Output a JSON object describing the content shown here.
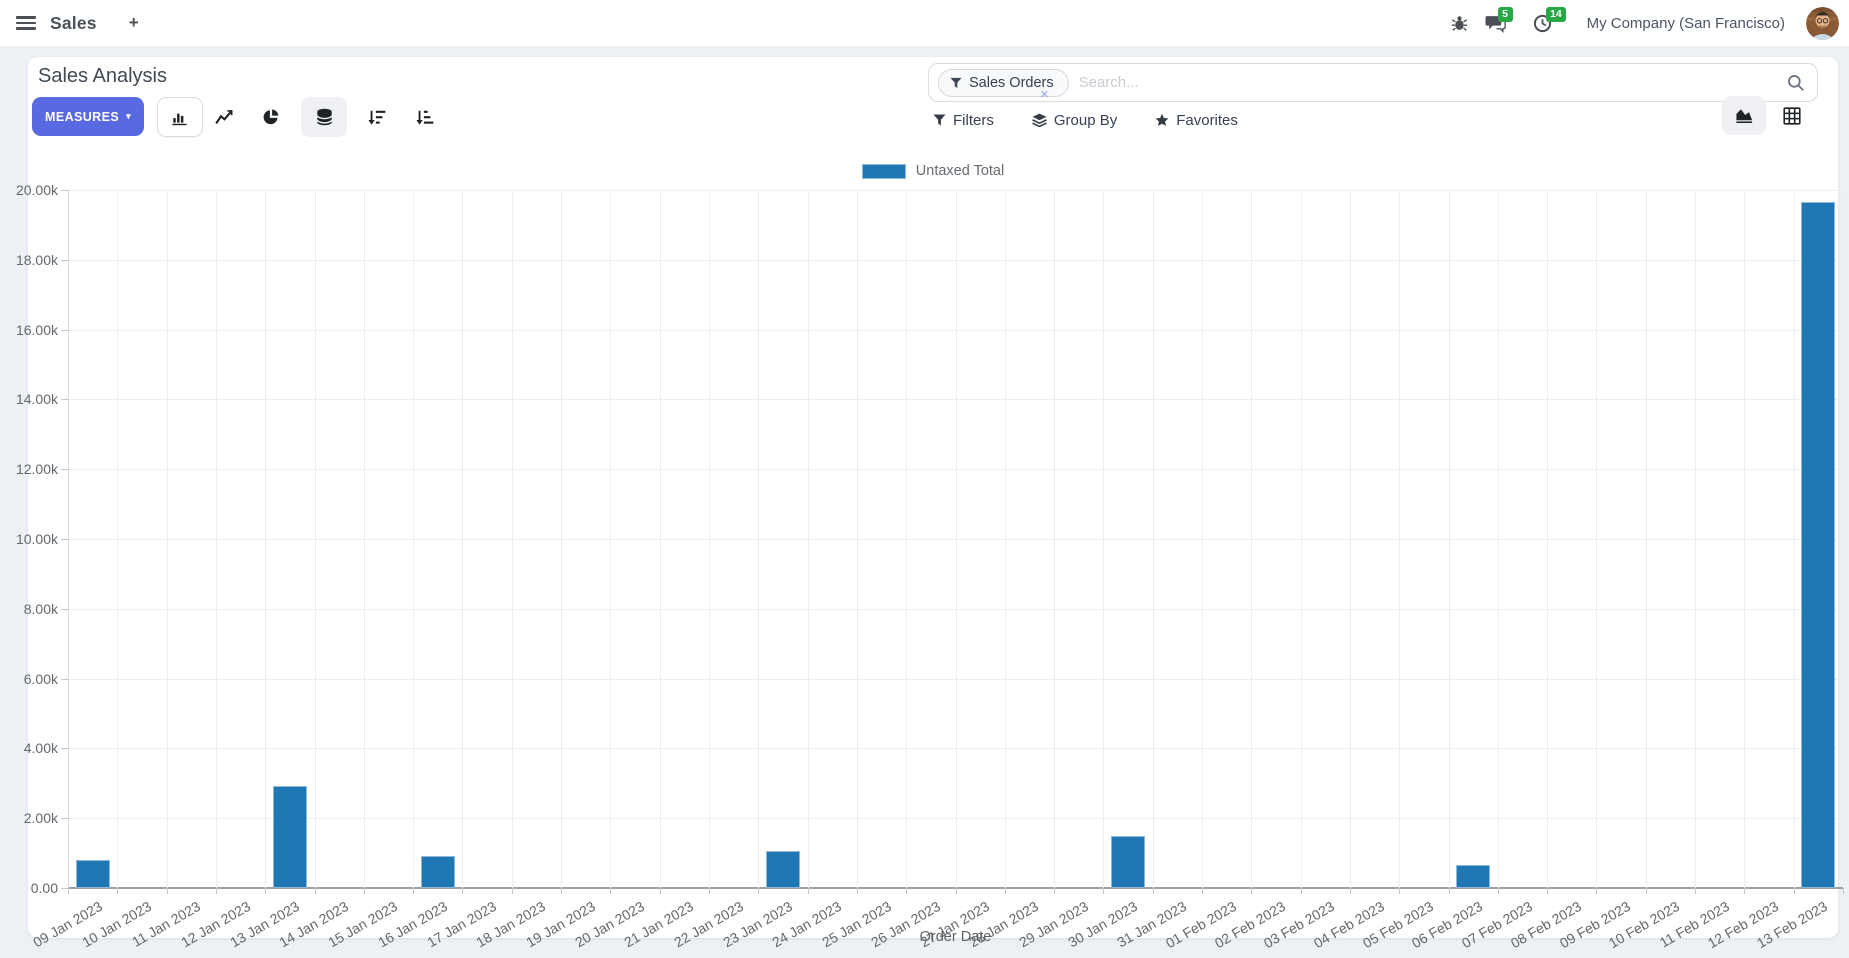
{
  "navbar": {
    "app_name": "Sales",
    "plus_label": "+",
    "messages_badge": "5",
    "activities_badge": "14",
    "company": "My Company (San Francisco)"
  },
  "control_panel": {
    "title": "Sales Analysis",
    "measures_label": "MEASURES",
    "measures_caret": "▾",
    "search": {
      "facet_label": "Sales Orders",
      "placeholder": "Search...",
      "remove_label": "×"
    },
    "filters_label": "Filters",
    "group_by_label": "Group By",
    "favorites_label": "Favorites"
  },
  "colors": {
    "primary_button": "#5969e2",
    "badge_green": "#28a745",
    "bar_blue": "#1f77b4"
  },
  "chart_data": {
    "type": "bar",
    "title": "",
    "xlabel": "Order Date",
    "ylabel": "",
    "ylim": [
      0,
      20000
    ],
    "grid": true,
    "legend_position": "top",
    "legend": [
      {
        "label": "Untaxed Total",
        "color": "#1f77b4"
      }
    ],
    "y_tick_labels": [
      "0.00",
      "2.00k",
      "4.00k",
      "6.00k",
      "8.00k",
      "10.00k",
      "12.00k",
      "14.00k",
      "16.00k",
      "18.00k",
      "20.00k"
    ],
    "categories": [
      "09 Jan 2023",
      "10 Jan 2023",
      "11 Jan 2023",
      "12 Jan 2023",
      "13 Jan 2023",
      "14 Jan 2023",
      "15 Jan 2023",
      "16 Jan 2023",
      "17 Jan 2023",
      "18 Jan 2023",
      "19 Jan 2023",
      "20 Jan 2023",
      "21 Jan 2023",
      "22 Jan 2023",
      "23 Jan 2023",
      "24 Jan 2023",
      "25 Jan 2023",
      "26 Jan 2023",
      "27 Jan 2023",
      "28 Jan 2023",
      "29 Jan 2023",
      "30 Jan 2023",
      "31 Jan 2023",
      "01 Feb 2023",
      "02 Feb 2023",
      "03 Feb 2023",
      "04 Feb 2023",
      "05 Feb 2023",
      "06 Feb 2023",
      "07 Feb 2023",
      "08 Feb 2023",
      "09 Feb 2023",
      "10 Feb 2023",
      "11 Feb 2023",
      "12 Feb 2023",
      "13 Feb 2023"
    ],
    "series": [
      {
        "name": "Untaxed Total",
        "color": "#1f77b4",
        "values": [
          800,
          0,
          0,
          0,
          2930,
          0,
          0,
          920,
          0,
          0,
          0,
          0,
          0,
          0,
          1060,
          0,
          0,
          0,
          0,
          0,
          0,
          1500,
          0,
          0,
          0,
          0,
          0,
          0,
          670,
          0,
          0,
          0,
          0,
          0,
          0,
          19660
        ]
      }
    ]
  }
}
